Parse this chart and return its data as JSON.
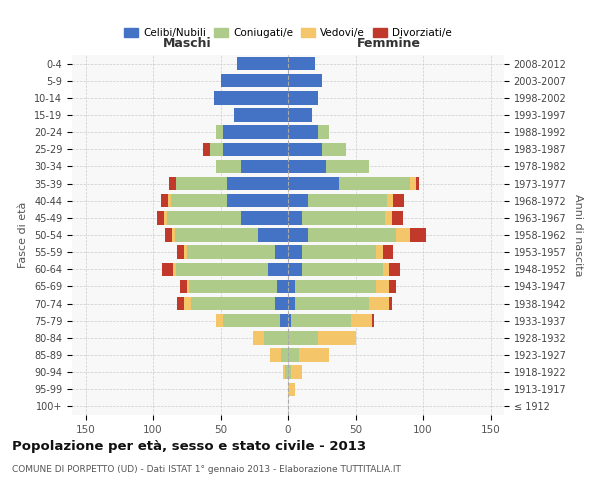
{
  "age_groups": [
    "100+",
    "95-99",
    "90-94",
    "85-89",
    "80-84",
    "75-79",
    "70-74",
    "65-69",
    "60-64",
    "55-59",
    "50-54",
    "45-49",
    "40-44",
    "35-39",
    "30-34",
    "25-29",
    "20-24",
    "15-19",
    "10-14",
    "5-9",
    "0-4"
  ],
  "birth_years": [
    "≤ 1912",
    "1913-1917",
    "1918-1922",
    "1923-1927",
    "1928-1932",
    "1933-1937",
    "1938-1942",
    "1943-1947",
    "1948-1952",
    "1953-1957",
    "1958-1962",
    "1963-1967",
    "1968-1972",
    "1973-1977",
    "1978-1982",
    "1983-1987",
    "1988-1992",
    "1993-1997",
    "1998-2002",
    "2003-2007",
    "2008-2012"
  ],
  "maschi": {
    "celibi": [
      0,
      0,
      0,
      0,
      0,
      6,
      10,
      8,
      15,
      10,
      22,
      35,
      45,
      45,
      35,
      48,
      48,
      40,
      55,
      50,
      38
    ],
    "coniugati": [
      0,
      0,
      2,
      5,
      18,
      42,
      62,
      65,
      68,
      65,
      62,
      55,
      42,
      38,
      18,
      10,
      5,
      0,
      0,
      0,
      0
    ],
    "vedovi": [
      0,
      0,
      2,
      8,
      8,
      5,
      5,
      2,
      2,
      2,
      2,
      2,
      2,
      0,
      0,
      0,
      0,
      0,
      0,
      0,
      0
    ],
    "divorziati": [
      0,
      0,
      0,
      0,
      0,
      0,
      5,
      5,
      8,
      5,
      5,
      5,
      5,
      5,
      0,
      5,
      0,
      0,
      0,
      0,
      0
    ]
  },
  "femmine": {
    "nubili": [
      0,
      0,
      0,
      0,
      0,
      2,
      5,
      5,
      10,
      10,
      15,
      10,
      15,
      38,
      28,
      25,
      22,
      18,
      22,
      25,
      20
    ],
    "coniugate": [
      0,
      0,
      2,
      8,
      22,
      45,
      55,
      60,
      60,
      55,
      65,
      62,
      58,
      52,
      32,
      18,
      8,
      0,
      0,
      0,
      0
    ],
    "vedove": [
      0,
      5,
      8,
      22,
      28,
      15,
      15,
      10,
      5,
      5,
      10,
      5,
      5,
      5,
      0,
      0,
      0,
      0,
      0,
      0,
      0
    ],
    "divorziate": [
      0,
      0,
      0,
      0,
      0,
      2,
      2,
      5,
      8,
      8,
      12,
      8,
      8,
      2,
      0,
      0,
      0,
      0,
      0,
      0,
      0
    ]
  },
  "colors": {
    "celibi_nubili": "#4472C4",
    "coniugati": "#AECB8A",
    "vedovi": "#F5C56A",
    "divorziati": "#C0392B"
  },
  "xlim": 160,
  "title": "Popolazione per età, sesso e stato civile - 2013",
  "subtitle": "COMUNE DI PORPETTO (UD) - Dati ISTAT 1° gennaio 2013 - Elaborazione TUTTITALIA.IT",
  "maschi_label": "Maschi",
  "femmine_label": "Femmine",
  "ylabel_left": "Fasce di età",
  "ylabel_right": "Anni di nascita",
  "legend_labels": [
    "Celibi/Nubili",
    "Coniugati/e",
    "Vedovi/e",
    "Divorziati/e"
  ],
  "bg_color": "#f8f8f8",
  "grid_color": "#cccccc"
}
